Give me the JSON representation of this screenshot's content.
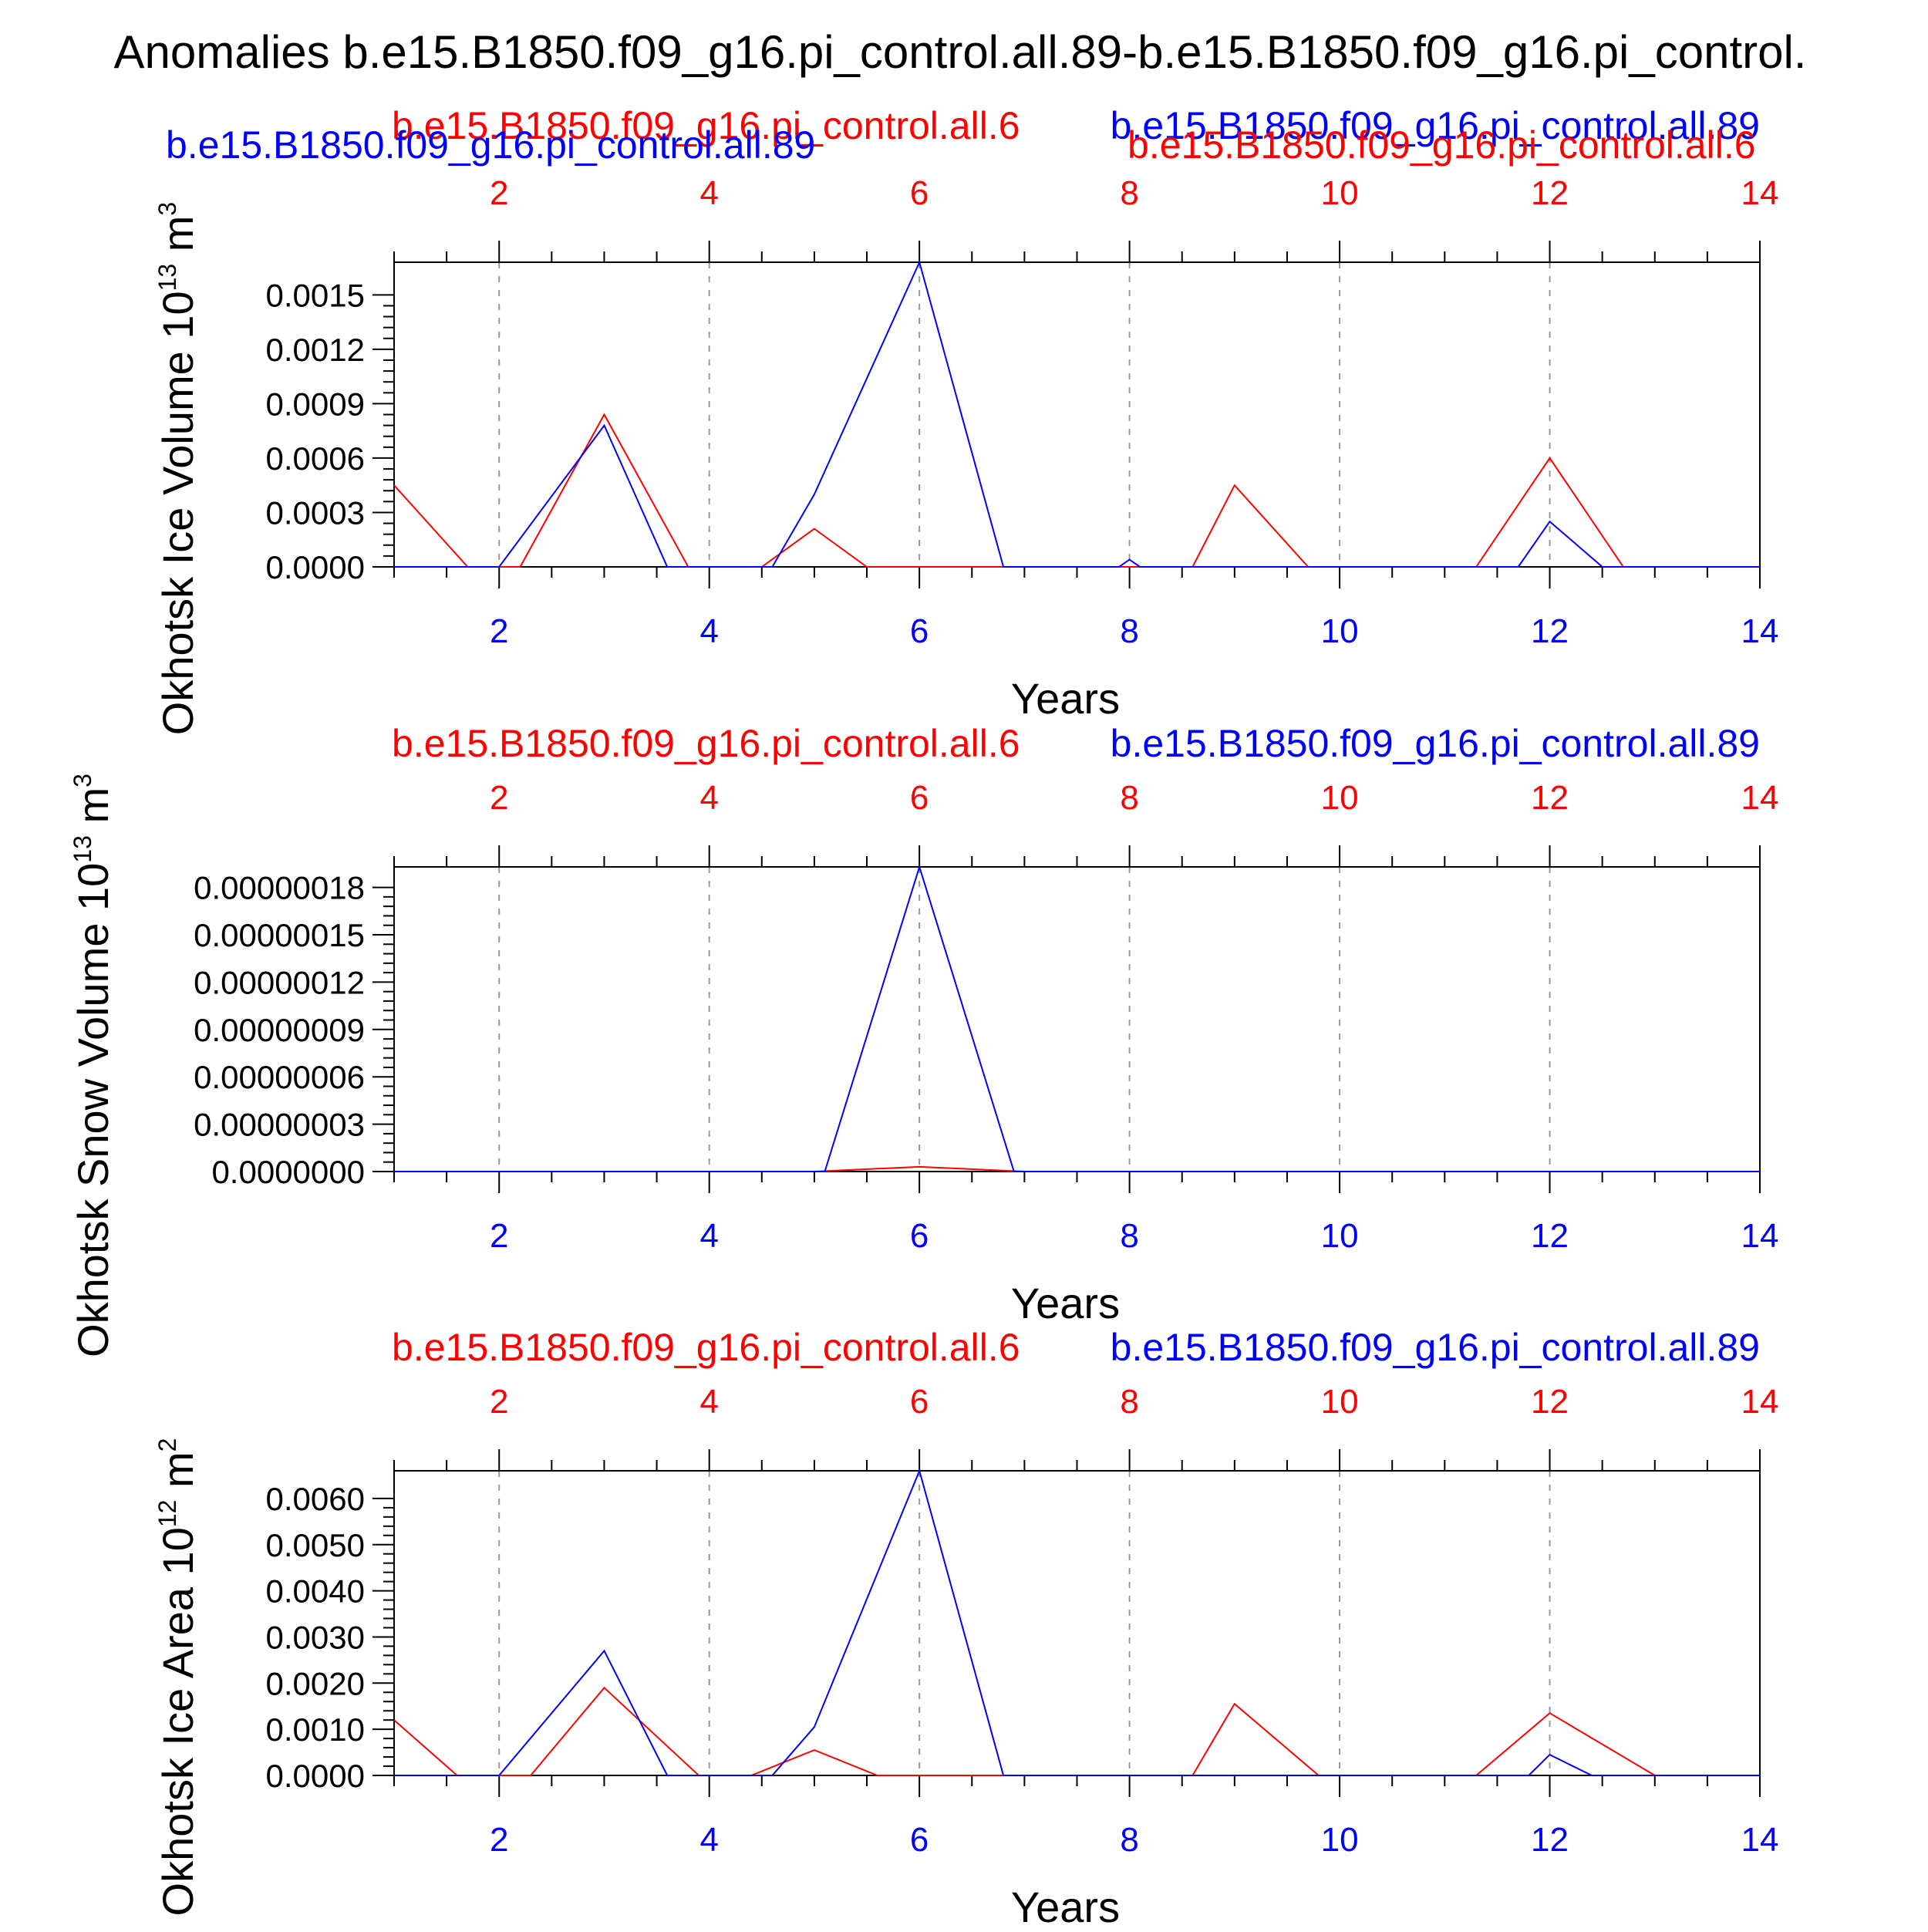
{
  "page_title": "Anomalies b.e15.B1850.f09_g16.pi_control.all.89-b.e15.B1850.f09_g16.pi_control.",
  "colors": {
    "run_a": "#ff0000",
    "run_b": "#0000ff",
    "axes": "#000000",
    "grid": "#999999",
    "background": "#ffffff"
  },
  "chart_data": [
    {
      "type": "line",
      "ylabel": "Okhotsk Ice Volume 10",
      "ylabel_exponent": "13",
      "ylabel_unit": "m",
      "ylabel_unit_exponent": "3",
      "xlabel": "Years",
      "xlim": [
        1,
        14
      ],
      "ylim": [
        0,
        0.00168
      ],
      "grid": "vertical dashed at major ticks",
      "x_ticks": [
        "2",
        "4",
        "6",
        "8",
        "10",
        "12",
        "14"
      ],
      "y_ticks": [
        "0.0000",
        "0.0003",
        "0.0006",
        "0.0009",
        "0.0012",
        "0.0015"
      ],
      "series": [
        {
          "name": "b.e15.B1850.f09_g16.pi_control.all.6",
          "color": "#ff0000",
          "x": [
            1,
            1.7,
            2.2,
            3,
            3.8,
            4.5,
            5,
            5.5,
            8.6,
            9,
            9.7,
            11.3,
            12,
            12.7,
            14
          ],
          "y": [
            0.00045,
            0,
            0,
            0.00084,
            0,
            0,
            0.00021,
            0,
            0,
            0.00045,
            0,
            0,
            0.0006,
            0,
            0
          ]
        },
        {
          "name": "b.e15.B1850.f09_g16.pi_control.all.89",
          "color": "#0000ff",
          "x": [
            1,
            2,
            3,
            3.6,
            4.6,
            5,
            6,
            6.8,
            7.9,
            8,
            8.1,
            11.7,
            12,
            12.5,
            14
          ],
          "y": [
            0,
            0,
            0.00078,
            0,
            0,
            0.0004,
            0.00168,
            0,
            0,
            4e-05,
            0,
            0,
            0.00025,
            0,
            0
          ]
        }
      ]
    },
    {
      "type": "line",
      "ylabel": "Okhotsk Snow Volume 10",
      "ylabel_exponent": "13",
      "ylabel_unit": "m",
      "ylabel_unit_exponent": "3",
      "xlabel": "Years",
      "xlim": [
        1,
        14
      ],
      "ylim": [
        0,
        1.93e-07
      ],
      "grid": "vertical dashed at major ticks",
      "x_ticks": [
        "2",
        "4",
        "6",
        "8",
        "10",
        "12",
        "14"
      ],
      "y_ticks": [
        "0.0000000",
        "0.00000003",
        "0.00000006",
        "0.00000009",
        "0.00000012",
        "0.00000015",
        "0.00000018"
      ],
      "series": [
        {
          "name": "b.e15.B1850.f09_g16.pi_control.all.6",
          "color": "#ff0000",
          "x": [
            1,
            5,
            6,
            7,
            14
          ],
          "y": [
            0,
            0,
            3e-09,
            0,
            0
          ]
        },
        {
          "name": "b.e15.B1850.f09_g16.pi_control.all.89",
          "color": "#0000ff",
          "x": [
            1,
            5.1,
            6,
            6.9,
            14
          ],
          "y": [
            0,
            0,
            1.93e-07,
            0,
            0
          ]
        }
      ]
    },
    {
      "type": "line",
      "ylabel": "Okhotsk Ice Area 10",
      "ylabel_exponent": "12",
      "ylabel_unit": "m",
      "ylabel_unit_exponent": "2",
      "xlabel": "Years",
      "xlim": [
        1,
        14
      ],
      "ylim": [
        0,
        0.0066
      ],
      "grid": "vertical dashed at major ticks",
      "x_ticks": [
        "2",
        "4",
        "6",
        "8",
        "10",
        "12",
        "14"
      ],
      "y_ticks": [
        "0.0000",
        "0.0010",
        "0.0020",
        "0.0030",
        "0.0040",
        "0.0050",
        "0.0060"
      ],
      "series": [
        {
          "name": "b.e15.B1850.f09_g16.pi_control.all.6",
          "color": "#ff0000",
          "x": [
            1,
            1.6,
            2.3,
            3,
            3.9,
            4.4,
            5,
            5.6,
            8.6,
            9,
            9.8,
            11.3,
            12,
            13,
            14
          ],
          "y": [
            0.0012,
            0,
            0,
            0.0019,
            0,
            0,
            0.00055,
            0,
            0,
            0.00155,
            0,
            0,
            0.00135,
            0,
            0
          ]
        },
        {
          "name": "b.e15.B1850.f09_g16.pi_control.all.89",
          "color": "#0000ff",
          "x": [
            1,
            2,
            3,
            3.6,
            4.6,
            5,
            6,
            6.8,
            11.8,
            12,
            12.4,
            14
          ],
          "y": [
            0,
            0,
            0.0027,
            0,
            0,
            0.00105,
            0.0066,
            0,
            0,
            0.00045,
            0,
            0
          ]
        }
      ]
    }
  ]
}
